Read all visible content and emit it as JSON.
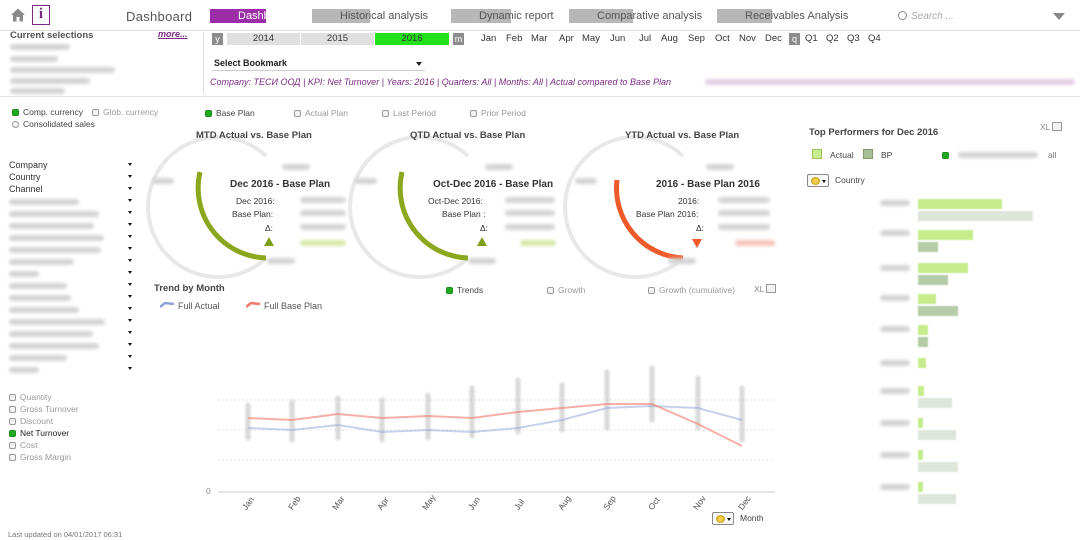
{
  "nav": {
    "title": "Dashboard",
    "tabs": [
      {
        "label": "Dashboard",
        "active": true
      },
      {
        "label": "Historical analysis",
        "active": false
      },
      {
        "label": "Dynamic report",
        "active": false
      },
      {
        "label": "Comparative analysis",
        "active": false
      },
      {
        "label": "Receivables Analysis",
        "active": false
      }
    ],
    "search_placeholder": "Search ..."
  },
  "selections": {
    "heading": "Current selections",
    "more": "more..."
  },
  "calendar": {
    "year_marker": "y",
    "years": [
      "2014",
      "2015",
      "2016"
    ],
    "selected_year": "2016",
    "month_marker": "m",
    "months": [
      "Jan",
      "Feb",
      "Mar",
      "Apr",
      "May",
      "Jun",
      "Jul",
      "Aug",
      "Sep",
      "Oct",
      "Nov",
      "Dec"
    ],
    "quarter_marker": "q",
    "quarters": [
      "Q1",
      "Q2",
      "Q3",
      "Q4"
    ]
  },
  "bookmark": {
    "label": "Select Bookmark"
  },
  "kpi_summary": "Company: ТЕСИ ООД | KPI: Net Turnover | Years: 2016 | Quarters: All | Months: All | Actual compared to Base Plan",
  "options": {
    "currency": [
      "Comp. currency",
      "Glob. currency"
    ],
    "consolidated": "Consolidated sales",
    "comparisons": [
      "Base Plan",
      "Actual Plan",
      "Last Period",
      "Prior Period"
    ]
  },
  "dimensions": [
    "Company",
    "Country",
    "Channel"
  ],
  "measures": [
    {
      "label": "Quantity",
      "selected": false
    },
    {
      "label": "Gross Turnover",
      "selected": false
    },
    {
      "label": "Discount",
      "selected": false
    },
    {
      "label": "Net Turnover",
      "selected": true
    },
    {
      "label": "Cost",
      "selected": false
    },
    {
      "label": "Gross Margin",
      "selected": false
    }
  ],
  "gauges": [
    {
      "title": "MTD Actual vs. Base Plan",
      "heading": "Dec 2016 - Base Plan",
      "row1": "Dec 2016:",
      "row2": "Base Plan:",
      "row3": "Δ:",
      "trend": "up",
      "color": "#8aa71e"
    },
    {
      "title": "QTD Actual vs. Base Plan",
      "heading": "Oct-Dec 2016 - Base Plan",
      "row1": "Oct-Dec 2016:",
      "row2": "Base Plan :",
      "row3": "Δ:",
      "trend": "up",
      "color": "#8aa71e"
    },
    {
      "title": "YTD Actual vs. Base Plan",
      "heading": "2016 - Base Plan 2016",
      "row1": "2016:",
      "row2": "Base Plan 2016:",
      "row3": "Δ:",
      "trend": "down",
      "color": "#ee5a2a"
    }
  ],
  "trend": {
    "title": "Trend by Month",
    "legend": [
      {
        "label": "Full Actual",
        "color": "#8fa3d6"
      },
      {
        "label": "Full Base Plan",
        "color": "#f07a6a"
      }
    ],
    "modes": [
      "Trends",
      "Growth",
      "Growth (cumulative)"
    ],
    "xl": "XL",
    "y_zero": "0",
    "axis_label": "Month"
  },
  "top_performers": {
    "title": "Top Performers for Dec 2016",
    "legend": [
      {
        "label": "Actual",
        "color": "#c6ec8c"
      },
      {
        "label": "BP",
        "color": "#a6bf96"
      }
    ],
    "all_label": "all",
    "xl": "XL",
    "dimension": "Country"
  },
  "footer": "Last updated on 04/01/2017 06:31"
}
